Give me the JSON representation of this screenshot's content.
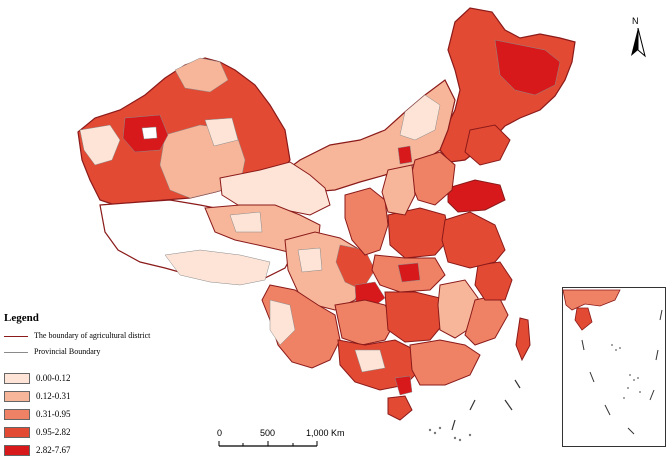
{
  "legend": {
    "title": "Legend",
    "lines": [
      {
        "label": "The boundary of agricultural district",
        "color": "#8b1a1a"
      },
      {
        "label": "Provincial Boundary",
        "color": "#8a8a8a"
      }
    ],
    "classes": [
      {
        "label": "0.00-0.12",
        "color": "#fde4d7"
      },
      {
        "label": "0.12-0.31",
        "color": "#f7b699"
      },
      {
        "label": "0.31-0.95",
        "color": "#ef8265"
      },
      {
        "label": "0.95-2.82",
        "color": "#e34a33"
      },
      {
        "label": "2.82-7.67",
        "color": "#d7191c"
      }
    ]
  },
  "scale_bar": {
    "ticks": [
      "0",
      "500",
      "1,000 Km"
    ]
  },
  "north_arrow": {
    "label": "N"
  },
  "colors": {
    "no_data": "#ffffff",
    "district_boundary": "#8b1a1a",
    "province_boundary": "#8a8a8a"
  }
}
